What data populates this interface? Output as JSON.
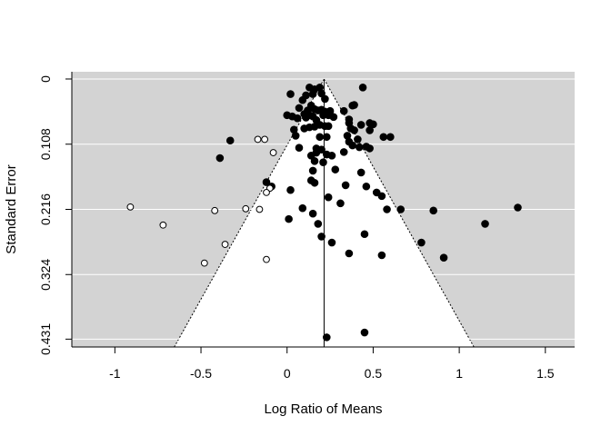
{
  "chart_data": {
    "type": "scatter",
    "subtype": "funnel-plot",
    "title": "",
    "xlabel": "Log Ratio of Means",
    "ylabel": "Standard Error",
    "xlim": [
      -1.25,
      1.67
    ],
    "ylim": [
      0.444,
      -0.012
    ],
    "y_reversed": true,
    "x_ticks": [
      -1,
      -0.5,
      0,
      0.5,
      1,
      1.5
    ],
    "x_tick_labels": [
      "-1",
      "-0.5",
      "0",
      "0.5",
      "1",
      "1.5"
    ],
    "y_ticks": [
      0,
      0.108,
      0.216,
      0.324,
      0.431
    ],
    "y_tick_labels": [
      "0",
      "0.108",
      "0.216",
      "0.324",
      "0.431"
    ],
    "center": 0.215,
    "funnel_max_se": 0.444,
    "z": 1.96,
    "grid": true,
    "colors": {
      "background": "#d3d3d3",
      "funnel": "#ffffff",
      "gridline": "#ffffff",
      "observed": "#000000",
      "filled": "#ffffff"
    },
    "series": [
      {
        "points": [
          [
            0.13,
            0.014
          ],
          [
            0.16,
            0.017
          ],
          [
            0.19,
            0.014
          ],
          [
            0.44,
            0.014
          ],
          [
            0.02,
            0.025
          ],
          [
            0.11,
            0.027
          ],
          [
            0.15,
            0.025
          ],
          [
            0.2,
            0.024
          ],
          [
            0.09,
            0.035
          ],
          [
            0.22,
            0.033
          ],
          [
            0.38,
            0.044
          ],
          [
            0.39,
            0.043
          ],
          [
            0.14,
            0.044
          ],
          [
            0.07,
            0.048
          ],
          [
            0.12,
            0.052
          ],
          [
            0.16,
            0.05
          ],
          [
            0.18,
            0.052
          ],
          [
            0.2,
            0.051
          ],
          [
            0.22,
            0.054
          ],
          [
            0.25,
            0.053
          ],
          [
            0.1,
            0.058
          ],
          [
            0.13,
            0.06
          ],
          [
            0.33,
            0.053
          ],
          [
            0.15,
            0.062
          ],
          [
            0.21,
            0.06
          ],
          [
            0.24,
            0.06
          ],
          [
            0.27,
            0.063
          ],
          [
            0.0,
            0.06
          ],
          [
            0.03,
            0.062
          ],
          [
            0.06,
            0.065
          ],
          [
            0.11,
            0.064
          ],
          [
            0.17,
            0.068
          ],
          [
            0.36,
            0.067
          ],
          [
            0.36,
            0.073
          ],
          [
            0.43,
            0.076
          ],
          [
            0.48,
            0.073
          ],
          [
            0.5,
            0.075
          ],
          [
            0.19,
            0.076
          ],
          [
            0.22,
            0.078
          ],
          [
            0.24,
            0.078
          ],
          [
            0.13,
            0.08
          ],
          [
            0.16,
            0.079
          ],
          [
            0.1,
            0.082
          ],
          [
            0.04,
            0.084
          ],
          [
            0.37,
            0.082
          ],
          [
            0.39,
            0.085
          ],
          [
            0.48,
            0.085
          ],
          [
            0.05,
            0.094
          ],
          [
            0.35,
            0.094
          ],
          [
            0.41,
            0.1
          ],
          [
            0.19,
            0.096
          ],
          [
            0.23,
            0.096
          ],
          [
            0.56,
            0.096
          ],
          [
            0.6,
            0.096
          ],
          [
            0.36,
            0.104
          ],
          [
            0.38,
            0.11
          ],
          [
            0.42,
            0.113
          ],
          [
            0.46,
            0.112
          ],
          [
            0.48,
            0.115
          ],
          [
            0.17,
            0.115
          ],
          [
            0.2,
            0.117
          ],
          [
            0.07,
            0.114
          ],
          [
            0.14,
            0.127
          ],
          [
            0.17,
            0.122
          ],
          [
            0.23,
            0.125
          ],
          [
            0.26,
            0.127
          ],
          [
            0.33,
            0.121
          ],
          [
            0.16,
            0.136
          ],
          [
            0.21,
            0.138
          ],
          [
            0.15,
            0.152
          ],
          [
            0.28,
            0.15
          ],
          [
            0.43,
            0.155
          ],
          [
            -0.33,
            0.102
          ],
          [
            -0.39,
            0.131
          ],
          [
            -0.12,
            0.171
          ],
          [
            -0.09,
            0.178
          ],
          [
            0.14,
            0.168
          ],
          [
            0.16,
            0.172
          ],
          [
            0.34,
            0.176
          ],
          [
            0.46,
            0.178
          ],
          [
            0.02,
            0.184
          ],
          [
            0.52,
            0.188
          ],
          [
            0.55,
            0.194
          ],
          [
            0.24,
            0.196
          ],
          [
            0.31,
            0.206
          ],
          [
            0.09,
            0.214
          ],
          [
            0.58,
            0.216
          ],
          [
            0.66,
            0.216
          ],
          [
            0.85,
            0.218
          ],
          [
            0.15,
            0.223
          ],
          [
            0.01,
            0.232
          ],
          [
            0.18,
            0.24
          ],
          [
            1.15,
            0.24
          ],
          [
            1.34,
            0.213
          ],
          [
            0.45,
            0.257
          ],
          [
            0.2,
            0.261
          ],
          [
            0.26,
            0.271
          ],
          [
            0.78,
            0.271
          ],
          [
            0.36,
            0.289
          ],
          [
            0.55,
            0.292
          ],
          [
            0.91,
            0.296
          ],
          [
            0.45,
            0.42
          ],
          [
            0.23,
            0.428
          ]
        ]
      },
      {
        "points": [
          [
            -0.17,
            0.1
          ],
          [
            -0.13,
            0.1
          ],
          [
            -0.08,
            0.122
          ],
          [
            -0.1,
            0.181
          ],
          [
            -0.12,
            0.188
          ],
          [
            -0.16,
            0.216
          ],
          [
            -0.24,
            0.215
          ],
          [
            -0.42,
            0.218
          ],
          [
            -0.91,
            0.212
          ],
          [
            -0.72,
            0.242
          ],
          [
            -0.36,
            0.274
          ],
          [
            -0.48,
            0.305
          ],
          [
            -0.12,
            0.299
          ]
        ]
      }
    ]
  }
}
